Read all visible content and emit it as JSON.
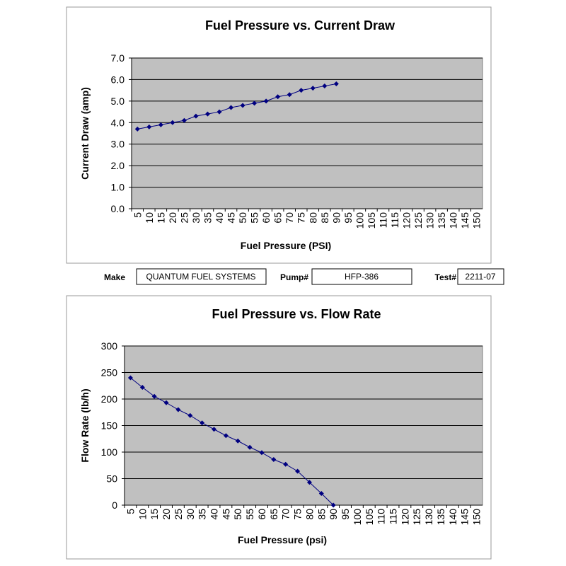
{
  "chart_data": [
    {
      "type": "line",
      "title": "Fuel Pressure vs. Current Draw",
      "x_label": "Fuel Pressure (PSI)",
      "y_label": "Current Draw (amp)",
      "categories": [
        "5",
        "10",
        "15",
        "20",
        "25",
        "30",
        "35",
        "40",
        "45",
        "50",
        "55",
        "60",
        "65",
        "70",
        "75",
        "80",
        "85",
        "90",
        "95",
        "100",
        "105",
        "110",
        "115",
        "120",
        "125",
        "130",
        "135",
        "140",
        "145",
        "150"
      ],
      "series": [
        {
          "color": "#000080",
          "values": [
            3.7,
            3.8,
            3.9,
            4.0,
            4.1,
            4.3,
            4.4,
            4.5,
            4.7,
            4.8,
            4.9,
            5.0,
            5.2,
            5.3,
            5.5,
            5.6,
            5.7,
            5.8,
            null,
            null,
            null,
            null,
            null,
            null,
            null,
            null,
            null,
            null,
            null,
            null
          ]
        }
      ],
      "ylim": [
        0,
        7
      ],
      "yticks": [
        {
          "value": 0,
          "label": "0.0"
        },
        {
          "value": 1,
          "label": "1.0"
        },
        {
          "value": 2,
          "label": "2.0"
        },
        {
          "value": 3,
          "label": "3.0"
        },
        {
          "value": 4,
          "label": "4.0"
        },
        {
          "value": 5,
          "label": "5.0"
        },
        {
          "value": 6,
          "label": "6.0"
        },
        {
          "value": 7,
          "label": "7.0"
        }
      ],
      "grid": true
    },
    {
      "type": "line",
      "title": "Fuel Pressure vs. Flow Rate",
      "x_label": "Fuel Pressure (psi)",
      "y_label": "Flow Rate (lb/h)",
      "categories": [
        "5",
        "10",
        "15",
        "20",
        "25",
        "30",
        "35",
        "40",
        "45",
        "50",
        "55",
        "60",
        "65",
        "70",
        "75",
        "80",
        "85",
        "90",
        "95",
        "100",
        "105",
        "110",
        "115",
        "120",
        "125",
        "130",
        "135",
        "140",
        "145",
        "150"
      ],
      "series": [
        {
          "color": "#000080",
          "values": [
            240,
            222,
            205,
            193,
            180,
            169,
            155,
            143,
            131,
            121,
            109,
            99,
            86,
            77,
            64,
            43,
            22,
            0,
            null,
            null,
            null,
            null,
            null,
            null,
            null,
            null,
            null,
            null,
            null,
            null
          ]
        }
      ],
      "ylim": [
        0,
        300
      ],
      "yticks": [
        0,
        50,
        100,
        150,
        200,
        250,
        300
      ],
      "grid": true
    }
  ],
  "info": {
    "make_label": "Make",
    "make": "QUANTUM FUEL SYSTEMS",
    "pump_label": "Pump#",
    "pump": "HFP-386",
    "test_label": "Test#",
    "test": "2211-07"
  }
}
